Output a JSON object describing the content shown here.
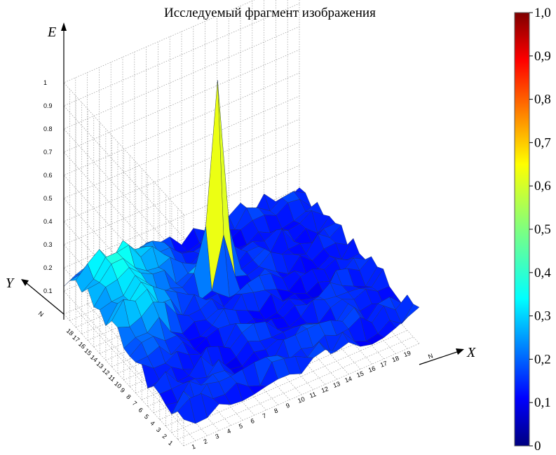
{
  "chart_data": {
    "type": "surface3d",
    "title": "Исследуемый фрагмент изображения",
    "zlabel": "E",
    "xlabel": "X",
    "ylabel": "Y",
    "x_corner_label": "N",
    "y_corner_label": "N",
    "x_ticks": [
      "1",
      "2",
      "3",
      "4",
      "5",
      "6",
      "7",
      "8",
      "9",
      "10",
      "11",
      "12",
      "13",
      "14",
      "15",
      "16",
      "17",
      "18",
      "19"
    ],
    "y_ticks": [
      "1",
      "2",
      "3",
      "4",
      "5",
      "6",
      "7",
      "8",
      "9",
      "10",
      "11",
      "12",
      "13",
      "14",
      "15",
      "16",
      "17",
      "18"
    ],
    "z_ticks": [
      "0.1",
      "0.2",
      "0.3",
      "0.4",
      "0.5",
      "0.6",
      "0.7",
      "0.8",
      "0.9",
      "1"
    ],
    "zlim": [
      0,
      1
    ],
    "grid": true,
    "colormap": "jet",
    "colorbar": {
      "ticks": [
        "0",
        "0,1",
        "0,2",
        "0,3",
        "0,4",
        "0,5",
        "0,6",
        "0,7",
        "0,8",
        "0,9",
        "1,0"
      ],
      "range": [
        0,
        1
      ]
    },
    "peak": {
      "x": 10,
      "y": 14,
      "value": 0.96
    },
    "grid_size": 20,
    "surface_description_values": "approximate energy E over a 20x20 grid; mostly 0.05–0.2 with one sharp peak near 0.96"
  }
}
